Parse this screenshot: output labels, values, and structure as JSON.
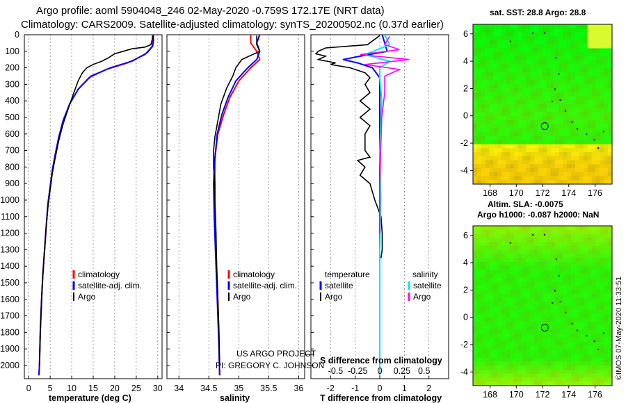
{
  "title_line1": "Argo profile: aoml 5904048_246 02-May-2020 -0.759S 172.17E (NRT data)",
  "title_line2": "Climatology: CARS2009. Satellite-adjusted climatology: synTS_20200502.nc (0.37d earlier)",
  "credit_line1": "US ARGO PROJECT",
  "credit_line2": "PI: GREGORY C. JOHNSON",
  "side_stamp": "©IMOS 07-May-2020 11:33:51",
  "colors": {
    "climatology": "#ff0000",
    "satellite": "#0000ff",
    "argo": "#000000",
    "sat_salinity": "#00e5ff",
    "argo_salinity": "#ff00ff"
  },
  "chart_data": [
    {
      "id": "temperature",
      "type": "line",
      "xlabel": "temperature (deg C)",
      "ylabel": "",
      "xlim": [
        -1,
        31
      ],
      "ylim": [
        2080,
        0
      ],
      "xticks": [
        0,
        5,
        10,
        15,
        20,
        25,
        30
      ],
      "yticks": [
        0,
        100,
        200,
        300,
        400,
        500,
        600,
        700,
        800,
        900,
        1000,
        1100,
        1200,
        1300,
        1400,
        1500,
        1600,
        1700,
        1800,
        1900,
        2000
      ],
      "legend": [
        "climatology",
        "satellite-adj. clim.",
        "Argo"
      ],
      "series": [
        {
          "name": "climatology",
          "color": "#ff0000",
          "points": [
            [
              28.9,
              0
            ],
            [
              28.9,
              40
            ],
            [
              28.7,
              70
            ],
            [
              27,
              120
            ],
            [
              23,
              170
            ],
            [
              18,
              210
            ],
            [
              14,
              260
            ],
            [
              11.5,
              330
            ],
            [
              9.5,
              420
            ],
            [
              8,
              520
            ],
            [
              7,
              620
            ],
            [
              6.2,
              720
            ],
            [
              5.5,
              820
            ],
            [
              5,
              920
            ],
            [
              4.5,
              1020
            ],
            [
              4.1,
              1150
            ],
            [
              3.7,
              1300
            ],
            [
              3.3,
              1450
            ],
            [
              3,
              1600
            ],
            [
              2.7,
              1800
            ],
            [
              2.5,
              2000
            ],
            [
              2.4,
              2060
            ]
          ]
        },
        {
          "name": "satellite-adj. clim.",
          "color": "#0000ff",
          "points": [
            [
              29,
              0
            ],
            [
              29,
              40
            ],
            [
              28.8,
              70
            ],
            [
              27.5,
              110
            ],
            [
              24,
              160
            ],
            [
              19,
              200
            ],
            [
              14.5,
              250
            ],
            [
              11.5,
              330
            ],
            [
              9.5,
              420
            ],
            [
              8,
              520
            ],
            [
              7,
              620
            ],
            [
              6.2,
              720
            ],
            [
              5.5,
              820
            ],
            [
              5,
              920
            ],
            [
              4.5,
              1020
            ],
            [
              4.1,
              1150
            ],
            [
              3.7,
              1300
            ],
            [
              3.3,
              1450
            ],
            [
              3,
              1600
            ],
            [
              2.7,
              1800
            ],
            [
              2.5,
              2000
            ],
            [
              2.4,
              2060
            ]
          ]
        },
        {
          "name": "Argo",
          "color": "#000000",
          "points": [
            [
              28.8,
              5
            ],
            [
              28.7,
              30
            ],
            [
              28.4,
              60
            ],
            [
              27,
              75
            ],
            [
              24,
              85
            ],
            [
              22,
              100
            ],
            [
              20,
              115
            ],
            [
              18.5,
              140
            ],
            [
              17,
              160
            ],
            [
              15,
              180
            ],
            [
              13.5,
              200
            ],
            [
              12.5,
              230
            ],
            [
              11.5,
              280
            ],
            [
              10.5,
              350
            ],
            [
              9.3,
              440
            ],
            [
              8,
              540
            ],
            [
              7,
              640
            ],
            [
              6.2,
              740
            ],
            [
              5.5,
              840
            ],
            [
              5,
              940
            ],
            [
              4.5,
              1040
            ],
            [
              4.1,
              1150
            ],
            [
              3.7,
              1300
            ],
            [
              3.3,
              1450
            ],
            [
              3,
              1600
            ],
            [
              2.7,
              1800
            ],
            [
              2.5,
              2000
            ]
          ]
        }
      ]
    },
    {
      "id": "salinity",
      "type": "line",
      "xlabel": "salinity",
      "xlim": [
        33.8,
        36.1
      ],
      "ylim": [
        2080,
        0
      ],
      "xticks": [
        34,
        34.5,
        35,
        35.5,
        36
      ],
      "legend": [
        "climatology",
        "satellite-adj. clim.",
        "Argo"
      ],
      "series": [
        {
          "name": "climatology",
          "color": "#ff0000",
          "points": [
            [
              35.2,
              0
            ],
            [
              35.2,
              50
            ],
            [
              35.3,
              100
            ],
            [
              35.35,
              150
            ],
            [
              35.2,
              200
            ],
            [
              35,
              280
            ],
            [
              34.85,
              380
            ],
            [
              34.75,
              480
            ],
            [
              34.65,
              600
            ],
            [
              34.6,
              750
            ],
            [
              34.6,
              900
            ],
            [
              34.6,
              1100
            ],
            [
              34.62,
              1300
            ],
            [
              34.64,
              1500
            ],
            [
              34.66,
              1700
            ],
            [
              34.67,
              1900
            ],
            [
              34.68,
              2060
            ]
          ]
        },
        {
          "name": "satellite-adj. clim.",
          "color": "#0000ff",
          "points": [
            [
              35.35,
              0
            ],
            [
              35.3,
              50
            ],
            [
              35.35,
              100
            ],
            [
              35.3,
              150
            ],
            [
              35.15,
              200
            ],
            [
              34.95,
              280
            ],
            [
              34.82,
              380
            ],
            [
              34.72,
              480
            ],
            [
              34.64,
              600
            ],
            [
              34.6,
              750
            ],
            [
              34.58,
              900
            ],
            [
              34.59,
              1100
            ],
            [
              34.61,
              1300
            ],
            [
              34.63,
              1500
            ],
            [
              34.65,
              1700
            ],
            [
              34.67,
              1900
            ],
            [
              34.68,
              2060
            ]
          ]
        },
        {
          "name": "Argo",
          "color": "#000000",
          "points": [
            [
              35.3,
              5
            ],
            [
              35.3,
              60
            ],
            [
              35.35,
              100
            ],
            [
              35.05,
              150
            ],
            [
              34.95,
              200
            ],
            [
              34.9,
              250
            ],
            [
              34.8,
              320
            ],
            [
              34.7,
              420
            ],
            [
              34.65,
              520
            ],
            [
              34.6,
              620
            ],
            [
              34.58,
              700
            ],
            [
              34.58,
              800
            ],
            [
              34.6,
              900
            ],
            [
              34.6,
              1000
            ],
            [
              34.62,
              1200
            ],
            [
              34.63,
              1400
            ],
            [
              34.65,
              1600
            ],
            [
              34.67,
              1800
            ],
            [
              34.68,
              2000
            ]
          ]
        }
      ]
    },
    {
      "id": "difference",
      "type": "line",
      "xlabel": "T difference from climatology",
      "xlim": [
        -2.8,
        2.8
      ],
      "ylim": [
        2080,
        0
      ],
      "xticks": [
        -2,
        -1,
        0,
        1,
        2
      ],
      "x2label": "S difference from climatology",
      "x2ticks": [
        -0.5,
        -0.25,
        0,
        0.25,
        0.5
      ],
      "x2ticklabels": [
        "-0.5",
        "-0.25",
        "0",
        "0.25",
        "0.5"
      ],
      "legend_temperature_title": "temperature",
      "legend_salinity_title": "salinity",
      "legend": [
        "satellite",
        "Argo",
        "satellite",
        "Argo"
      ],
      "series": [
        {
          "name": "temperature satellite",
          "color": "#0000ff",
          "points": [
            [
              0.1,
              0
            ],
            [
              0.2,
              50
            ],
            [
              0.3,
              100
            ],
            [
              -0.8,
              130
            ],
            [
              -1.5,
              150
            ],
            [
              -0.9,
              170
            ],
            [
              -0.3,
              200
            ],
            [
              0,
              260
            ],
            [
              0,
              400
            ],
            [
              0,
              800
            ],
            [
              0,
              1500
            ],
            [
              0,
              2060
            ]
          ]
        },
        {
          "name": "temperature Argo",
          "color": "#000000",
          "points": [
            [
              0,
              5
            ],
            [
              -0.5,
              60
            ],
            [
              -2.2,
              80
            ],
            [
              -2.5,
              100
            ],
            [
              -2.6,
              115
            ],
            [
              -2.2,
              130
            ],
            [
              -2.5,
              150
            ],
            [
              -1.8,
              170
            ],
            [
              -2,
              180
            ],
            [
              -1.2,
              200
            ],
            [
              -0.6,
              230
            ],
            [
              -0.4,
              260
            ],
            [
              -0.6,
              300
            ],
            [
              -0.4,
              350
            ],
            [
              -0.8,
              400
            ],
            [
              -0.4,
              450
            ],
            [
              -0.8,
              500
            ],
            [
              -0.4,
              550
            ],
            [
              -0.6,
              600
            ],
            [
              -0.6,
              700
            ],
            [
              -0.4,
              740
            ],
            [
              -0.9,
              760
            ],
            [
              -0.6,
              800
            ],
            [
              -0.8,
              850
            ],
            [
              -0.4,
              900
            ],
            [
              -0.2,
              1000
            ],
            [
              0.05,
              1100
            ],
            [
              0.1,
              1200
            ],
            [
              0.1,
              1300
            ],
            [
              0.05,
              1350
            ]
          ]
        },
        {
          "name": "salinity satellite",
          "color": "#00e5ff",
          "points": [
            [
              0.05,
              0
            ],
            [
              0.1,
              60
            ],
            [
              -0.15,
              120
            ],
            [
              0.1,
              160
            ],
            [
              0,
              200
            ],
            [
              0,
              260
            ],
            [
              0.02,
              400
            ],
            [
              0,
              700
            ],
            [
              0.01,
              1000
            ],
            [
              0,
              1300
            ],
            [
              0,
              1600
            ],
            [
              0,
              2060
            ]
          ]
        },
        {
          "name": "salinity Argo",
          "color": "#ff00ff",
          "points": [
            [
              0.1,
              10
            ],
            [
              0.05,
              60
            ],
            [
              0.2,
              90
            ],
            [
              -0.2,
              120
            ],
            [
              0.3,
              150
            ],
            [
              -0.15,
              180
            ],
            [
              0.2,
              210
            ],
            [
              0.05,
              250
            ],
            [
              0.05,
              350
            ],
            [
              0.02,
              500
            ],
            [
              0.01,
              700
            ],
            [
              0,
              900
            ],
            [
              0,
              1100
            ],
            [
              0,
              1200
            ]
          ]
        }
      ]
    },
    {
      "id": "sst_map",
      "type": "heatmap",
      "title": "sat. SST: 28.8 Argo: 28.8",
      "xlim": [
        166.7,
        177.3
      ],
      "ylim": [
        -5,
        6.7
      ],
      "xticks": [
        168,
        170,
        172,
        174,
        176
      ],
      "yticks": [
        -4,
        -2,
        0,
        2,
        4,
        6
      ],
      "marker": [
        172.17,
        -0.759
      ]
    },
    {
      "id": "sla_map",
      "type": "heatmap",
      "title": "Altim. SLA: -0.0075",
      "title2": "Argo h1000: -0.087 h2000: NaN",
      "xlim": [
        166.7,
        177.3
      ],
      "ylim": [
        -5,
        6.7
      ],
      "xticks": [
        168,
        170,
        172,
        174,
        176
      ],
      "yticks": [
        -4,
        -2,
        0,
        2,
        4,
        6
      ],
      "marker": [
        172.17,
        -0.759
      ]
    }
  ]
}
